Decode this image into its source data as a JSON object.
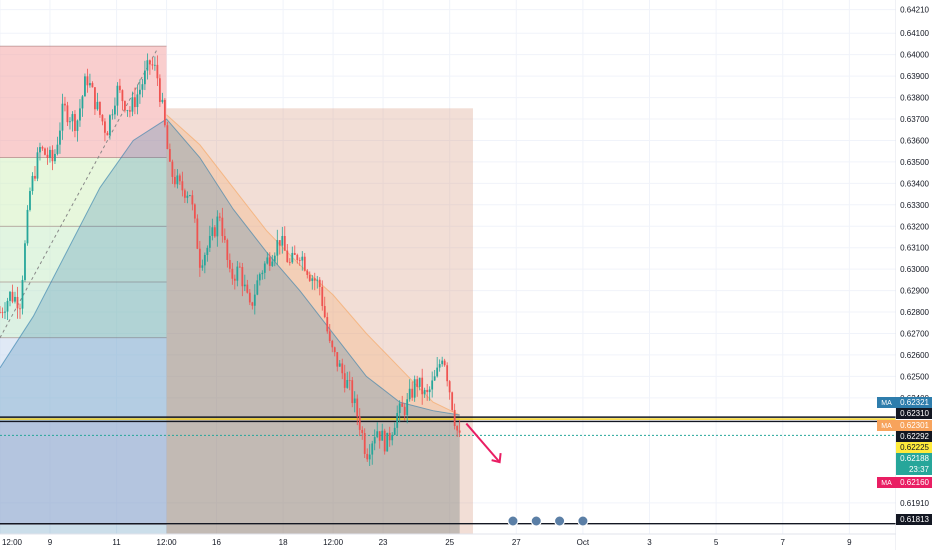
{
  "chart_data": {
    "type": "candlestick",
    "title": "",
    "price_axis": {
      "ylim": [
        0.61765,
        0.64255
      ],
      "ticks": [
        0.6421,
        0.641,
        0.64,
        0.639,
        0.638,
        0.637,
        0.636,
        0.635,
        0.634,
        0.633,
        0.632,
        0.631,
        0.63,
        0.629,
        0.628,
        0.627,
        0.626,
        0.625,
        0.624,
        0.6191
      ],
      "tick_labels": [
        "0.64210",
        "0.64100",
        "0.64000",
        "0.63900",
        "0.63800",
        "0.63700",
        "0.63600",
        "0.63500",
        "0.63400",
        "0.63300",
        "0.63200",
        "0.63100",
        "0.63000",
        "0.62900",
        "0.62800",
        "0.62700",
        "0.62600",
        "0.62500",
        "0.62400",
        "0.61910"
      ]
    },
    "time_axis": {
      "ticks": [
        {
          "t": 0,
          "label": "12:00"
        },
        {
          "t": 1.5,
          "label": "9"
        },
        {
          "t": 3.5,
          "label": "11"
        },
        {
          "t": 5.0,
          "label": "12:00"
        },
        {
          "t": 6.5,
          "label": "16"
        },
        {
          "t": 8.5,
          "label": "18"
        },
        {
          "t": 10.0,
          "label": "12:00"
        },
        {
          "t": 11.5,
          "label": "23"
        },
        {
          "t": 13.5,
          "label": "25"
        },
        {
          "t": 15.5,
          "label": "27"
        },
        {
          "t": 17.5,
          "label": "Oct"
        },
        {
          "t": 19.5,
          "label": "3"
        },
        {
          "t": 21.5,
          "label": "5"
        },
        {
          "t": 23.5,
          "label": "7"
        },
        {
          "t": 25.5,
          "label": "9"
        }
      ],
      "tmin": 0,
      "tmax": 26.9
    },
    "price_labels": [
      {
        "label": "MA",
        "value": "0.62321",
        "color": "#2e7dac",
        "text_color": "#ffffff"
      },
      {
        "label": "",
        "value": "0.62310",
        "color": "#131722",
        "text_color": "#ffffff"
      },
      {
        "label": "MA",
        "value": "0.62301",
        "color": "#f7a35c",
        "text_color": "#ffffff"
      },
      {
        "label": "",
        "value": "0.62292",
        "color": "#131722",
        "text_color": "#ffffff"
      },
      {
        "label": "",
        "value": "0.62225",
        "color": "#ffeb3b",
        "text_color": "#131722"
      },
      {
        "label": "",
        "value": "0.62188",
        "color": "#26a69a",
        "text_color": "#ffffff"
      },
      {
        "label": "",
        "value": "23:37",
        "color": "#26a69a",
        "text_color": "#ffffff"
      },
      {
        "label": "MA",
        "value": "0.62160",
        "color": "#e91e63",
        "text_color": "#ffffff"
      },
      {
        "label": "",
        "value": "0.61813",
        "color": "#131722",
        "text_color": "#ffffff"
      }
    ],
    "horizontal_lines": [
      {
        "value": 0.6231,
        "color": "#131722"
      },
      {
        "value": 0.62301,
        "color": "#f5d00f"
      },
      {
        "value": 0.6229,
        "color": "#131722"
      },
      {
        "value": 0.62225,
        "color": "#26a69a"
      },
      {
        "value": 0.61813,
        "color": "#131722"
      }
    ],
    "fib_levels": [
      0.6404,
      0.6352,
      0.632,
      0.6294,
      0.6268,
      0.6229,
      0.6181
    ],
    "moving_averages": [
      {
        "color": "#f7a35c",
        "points": [
          [
            5,
            0.6372
          ],
          [
            6,
            0.6358
          ],
          [
            7,
            0.6338
          ],
          [
            8,
            0.6318
          ],
          [
            9,
            0.6302
          ],
          [
            10,
            0.6288
          ],
          [
            11,
            0.627
          ],
          [
            12,
            0.6254
          ],
          [
            13,
            0.6238
          ],
          [
            13.8,
            0.6232
          ]
        ]
      },
      {
        "color": "#2e7dac",
        "points": [
          [
            0,
            0.6254
          ],
          [
            1,
            0.6278
          ],
          [
            2,
            0.6308
          ],
          [
            3,
            0.6338
          ],
          [
            4,
            0.636
          ],
          [
            5,
            0.637
          ],
          [
            6,
            0.6352
          ],
          [
            7,
            0.6328
          ],
          [
            8,
            0.6308
          ],
          [
            9,
            0.629
          ],
          [
            10,
            0.627
          ],
          [
            11,
            0.625
          ],
          [
            12,
            0.6238
          ],
          [
            13,
            0.6234
          ],
          [
            13.8,
            0.6232
          ]
        ]
      }
    ],
    "price_path": [
      [
        0,
        0.628
      ],
      [
        0.3,
        0.6288
      ],
      [
        0.6,
        0.6285
      ],
      [
        0.9,
        0.6336
      ],
      [
        1.2,
        0.6356
      ],
      [
        1.6,
        0.635
      ],
      [
        1.9,
        0.6375
      ],
      [
        2.3,
        0.6368
      ],
      [
        2.6,
        0.639
      ],
      [
        2.9,
        0.6376
      ],
      [
        3.2,
        0.6364
      ],
      [
        3.5,
        0.6384
      ],
      [
        3.9,
        0.6374
      ],
      [
        4.2,
        0.6384
      ],
      [
        4.5,
        0.6396
      ],
      [
        4.7,
        0.6392
      ],
      [
        4.9,
        0.6372
      ],
      [
        5.1,
        0.6346
      ],
      [
        5.4,
        0.6338
      ],
      [
        5.7,
        0.6336
      ],
      [
        6.0,
        0.6304
      ],
      [
        6.3,
        0.6312
      ],
      [
        6.6,
        0.6326
      ],
      [
        6.9,
        0.6296
      ],
      [
        7.2,
        0.63
      ],
      [
        7.5,
        0.6281
      ],
      [
        7.8,
        0.6298
      ],
      [
        8.1,
        0.6306
      ],
      [
        8.4,
        0.6314
      ],
      [
        8.7,
        0.6302
      ],
      [
        9.0,
        0.6308
      ],
      [
        9.3,
        0.6298
      ],
      [
        9.6,
        0.6292
      ],
      [
        9.9,
        0.6264
      ],
      [
        10.2,
        0.6254
      ],
      [
        10.5,
        0.6244
      ],
      [
        10.8,
        0.6228
      ],
      [
        11.0,
        0.6214
      ],
      [
        11.3,
        0.6226
      ],
      [
        11.6,
        0.6218
      ],
      [
        11.9,
        0.6232
      ],
      [
        12.2,
        0.6236
      ],
      [
        12.5,
        0.6248
      ],
      [
        12.8,
        0.624
      ],
      [
        13.1,
        0.625
      ],
      [
        13.3,
        0.6262
      ],
      [
        13.5,
        0.6244
      ],
      [
        13.7,
        0.6226
      ],
      [
        13.85,
        0.6218
      ]
    ],
    "projection_arrow": {
      "from": [
        14.0,
        0.6228
      ],
      "to": [
        15.0,
        0.621
      ],
      "color": "#e91e63"
    }
  }
}
